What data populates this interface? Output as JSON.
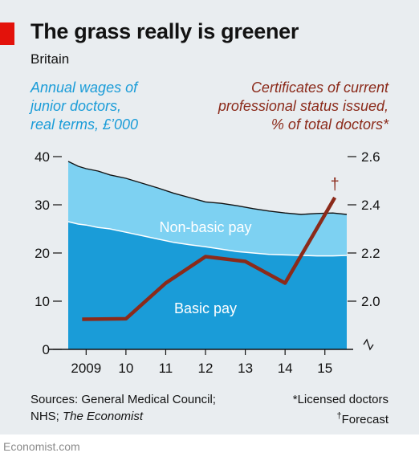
{
  "header": {
    "title": "The grass really is greener",
    "subtitle": "Britain"
  },
  "axes": {
    "left_label_lines": [
      "Annual wages of",
      "junior doctors,",
      "real terms, £’000"
    ],
    "right_label_lines": [
      "Certificates of current",
      "professional status issued,",
      "% of total doctors*"
    ]
  },
  "chart_data": {
    "type": "area",
    "x_range": [
      2008.55,
      2015.55
    ],
    "x_ticks": [
      2009,
      2010,
      2011,
      2012,
      2013,
      2014,
      2015
    ],
    "x_tick_labels": [
      "2009",
      "10",
      "11",
      "12",
      "13",
      "14",
      "15"
    ],
    "left_axis": {
      "ylim": [
        0,
        40
      ],
      "ticks": [
        0,
        10,
        20,
        30,
        40
      ]
    },
    "right_axis": {
      "ylim": [
        1.8,
        2.6
      ],
      "ticks": [
        "2.0",
        "2.2",
        "2.4",
        "2.6"
      ],
      "broken": true
    },
    "series": [
      {
        "name": "Basic pay",
        "axis": "left",
        "color": "#1a9cd8",
        "points": [
          [
            2008.55,
            26.5
          ],
          [
            2008.8,
            26.0
          ],
          [
            2009.0,
            25.8
          ],
          [
            2009.3,
            25.3
          ],
          [
            2009.6,
            25.0
          ],
          [
            2010.0,
            24.3
          ],
          [
            2010.4,
            23.6
          ],
          [
            2010.8,
            22.9
          ],
          [
            2011.2,
            22.2
          ],
          [
            2011.6,
            21.7
          ],
          [
            2012.0,
            21.3
          ],
          [
            2012.4,
            20.8
          ],
          [
            2012.8,
            20.3
          ],
          [
            2013.2,
            20.0
          ],
          [
            2013.6,
            19.7
          ],
          [
            2014.0,
            19.6
          ],
          [
            2014.4,
            19.5
          ],
          [
            2014.8,
            19.4
          ],
          [
            2015.2,
            19.4
          ],
          [
            2015.55,
            19.5
          ]
        ]
      },
      {
        "name": "Non-basic pay",
        "axis": "left",
        "color": "#7dd1f2",
        "total_points": [
          [
            2008.55,
            39.0
          ],
          [
            2008.8,
            38.0
          ],
          [
            2009.0,
            37.5
          ],
          [
            2009.3,
            37.0
          ],
          [
            2009.6,
            36.2
          ],
          [
            2010.0,
            35.5
          ],
          [
            2010.4,
            34.5
          ],
          [
            2010.8,
            33.5
          ],
          [
            2011.2,
            32.4
          ],
          [
            2011.6,
            31.5
          ],
          [
            2012.0,
            30.6
          ],
          [
            2012.4,
            30.3
          ],
          [
            2012.8,
            29.8
          ],
          [
            2013.2,
            29.2
          ],
          [
            2013.6,
            28.7
          ],
          [
            2014.0,
            28.3
          ],
          [
            2014.4,
            28.0
          ],
          [
            2014.8,
            28.2
          ],
          [
            2015.2,
            28.3
          ],
          [
            2015.55,
            28.0
          ]
        ]
      },
      {
        "name": "Certificates of current professional status issued",
        "axis": "right",
        "color": "#8b2a1a",
        "points": [
          [
            2008.9,
            1.925
          ],
          [
            2010.0,
            1.927
          ],
          [
            2011.0,
            2.075
          ],
          [
            2012.0,
            2.185
          ],
          [
            2013.0,
            2.165
          ],
          [
            2014.0,
            2.075
          ],
          [
            2015.25,
            2.43
          ]
        ],
        "forecast_marker": "†"
      }
    ],
    "area_labels": {
      "basic": "Basic pay",
      "nonbasic": "Non-basic pay"
    }
  },
  "footer": {
    "sources_lines": [
      "Sources: General Medical Council;",
      "NHS; "
    ],
    "sources_italic": "The Economist",
    "note_licensed": "*Licensed doctors",
    "note_forecast_mark": "†",
    "note_forecast": "Forecast",
    "credit": "Economist.com"
  }
}
